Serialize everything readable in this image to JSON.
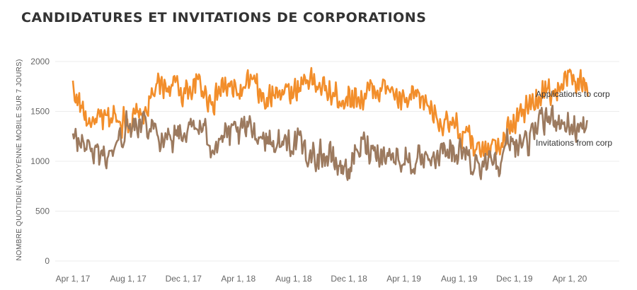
{
  "chart_data": {
    "type": "line",
    "title": "CANDIDATURES ET INVITATIONS DE CORPORATIONS",
    "ylabel": "NOMBRE QUOTIDIEN (MOYENNE MOBILE SUR 7 JOURS)",
    "xlabel": "",
    "ylim": [
      0,
      2300
    ],
    "yticks": [
      0,
      500,
      1000,
      1500,
      2000
    ],
    "grid": true,
    "xtick_labels": [
      "Apr 1, 17",
      "Aug 1, 17",
      "Dec 1, 17",
      "Apr 1, 18",
      "Aug 1, 18",
      "Dec 1, 18",
      "Apr 1, 19",
      "Aug 1, 19",
      "Dec 1, 19",
      "Apr 1, 20"
    ],
    "x_dates": [
      "2017-04-01",
      "2017-05-01",
      "2017-06-01",
      "2017-07-01",
      "2017-08-01",
      "2017-09-01",
      "2017-10-01",
      "2017-11-01",
      "2017-12-01",
      "2018-01-01",
      "2018-02-01",
      "2018-03-01",
      "2018-04-01",
      "2018-05-01",
      "2018-06-01",
      "2018-07-01",
      "2018-08-01",
      "2018-09-01",
      "2018-10-01",
      "2018-11-01",
      "2018-12-01",
      "2019-01-01",
      "2019-02-01",
      "2019-03-01",
      "2019-04-01",
      "2019-05-01",
      "2019-06-01",
      "2019-07-01",
      "2019-08-01",
      "2019-09-01",
      "2019-10-01",
      "2019-11-01",
      "2019-12-01",
      "2020-01-01",
      "2020-02-01",
      "2020-03-01",
      "2020-04-01",
      "2020-05-01"
    ],
    "series": [
      {
        "name": "Applications to corp",
        "color": "#f28e2b",
        "values": [
          1720,
          1420,
          1380,
          1450,
          1420,
          1430,
          1720,
          1760,
          1700,
          1780,
          1620,
          1750,
          1680,
          1790,
          1560,
          1760,
          1690,
          1860,
          1720,
          1650,
          1660,
          1650,
          1740,
          1720,
          1560,
          1640,
          1540,
          1360,
          1300,
          1150,
          1200,
          1240,
          1400,
          1540,
          1720,
          1690,
          1820,
          1760
        ]
      },
      {
        "name": "Invitations from corp",
        "color": "#9c7a5f",
        "values": [
          1200,
          1170,
          1040,
          1120,
          1380,
          1450,
          1300,
          1260,
          1280,
          1350,
          1200,
          1240,
          1250,
          1340,
          1240,
          1160,
          1230,
          1040,
          1090,
          980,
          920,
          1180,
          1120,
          1050,
          1040,
          960,
          940,
          1130,
          1080,
          960,
          1030,
          1060,
          1200,
          1220,
          1370,
          1460,
          1350,
          1310
        ]
      }
    ],
    "annotations": [
      "Applications to corp",
      "Invitations from corp"
    ]
  }
}
